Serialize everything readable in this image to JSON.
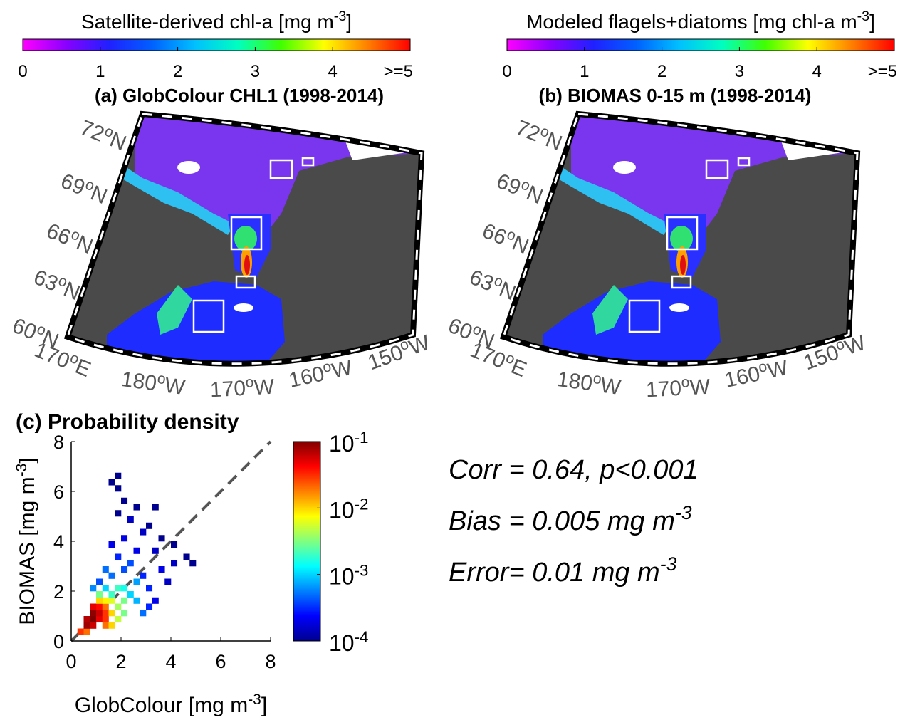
{
  "chart_data": [
    {
      "type": "map",
      "title": "(a) GlobColour CHL1 (1998-2014)",
      "colorbar": {
        "title": "Satellite-derived chl-a [mg m^{-3}]",
        "colors": [
          "#ff00ff",
          "#8a00ff",
          "#2020ff",
          "#0060ff",
          "#00c0ff",
          "#00ffc0",
          "#40ff00",
          "#ffff00",
          "#ff8000",
          "#ff0000"
        ],
        "xlim": [
          0,
          5
        ],
        "xticks": [
          0,
          1,
          2,
          3,
          4,
          {
            "value": 5,
            "label": ">=5"
          }
        ]
      },
      "lat_labels": [
        "72^{o}N",
        "69^{o}N",
        "66^{o}N",
        "63^{o}N",
        "60^{o}N"
      ],
      "lon_labels": [
        "170^{o}E",
        "180^{o}W",
        "170^{o}W",
        "160^{o}W",
        "150^{o}W"
      ]
    },
    {
      "type": "map",
      "title": "(b) BIOMAS 0-15 m (1998-2014)",
      "colorbar": {
        "title": "Modeled flagels+diatoms [mg chl-a m^{-3}]",
        "colors": [
          "#ff00ff",
          "#8a00ff",
          "#2020ff",
          "#0060ff",
          "#00c0ff",
          "#00ffc0",
          "#40ff00",
          "#ffff00",
          "#ff8000",
          "#ff0000"
        ],
        "xlim": [
          0,
          5
        ],
        "xticks": [
          0,
          1,
          2,
          3,
          4,
          {
            "value": 5,
            "label": ">=5"
          }
        ]
      },
      "lat_labels": [
        "72^{o}N",
        "69^{o}N",
        "66^{o}N",
        "63^{o}N",
        "60^{o}N"
      ],
      "lon_labels": [
        "170^{o}E",
        "180^{o}W",
        "170^{o}W",
        "160^{o}W",
        "150^{o}W"
      ]
    },
    {
      "type": "heatmap",
      "title": "(c) Probability density",
      "x_label": "GlobColour [mg m^{-3}]",
      "y_label": "BIOMAS [mg m^{-3}]",
      "xlim": [
        0,
        8
      ],
      "ylim": [
        0,
        8
      ],
      "xticks": [
        0,
        2,
        4,
        6,
        8
      ],
      "yticks": [
        0,
        2,
        4,
        6,
        8
      ],
      "x": [
        0.25,
        0.5,
        0.5,
        0.75,
        0.5,
        0.75,
        0.75,
        1.0,
        1.0,
        1.0,
        0.75,
        1.25,
        1.25,
        1.25,
        1.25,
        1.5,
        1.5,
        1.5,
        1.25,
        1.0,
        1.75,
        1.75,
        2.0,
        2.0,
        1.5,
        1.75,
        2.0,
        2.25,
        2.5,
        2.5,
        1.25,
        1.0,
        1.5,
        2.0,
        2.75,
        3.0,
        3.25,
        3.5,
        3.75,
        4.0,
        4.5,
        4.75,
        2.25,
        2.5,
        1.75,
        1.5,
        2.0,
        2.75,
        3.0,
        2.25,
        1.75,
        2.5,
        3.25,
        2.0,
        1.75,
        1.75,
        1.5,
        3.25,
        3.5,
        4.0,
        1.25,
        0.75,
        2.75,
        3.0,
        1.0
      ],
      "y": [
        0.25,
        0.25,
        0.5,
        0.5,
        0.75,
        0.75,
        1.0,
        0.75,
        1.0,
        1.25,
        1.25,
        0.5,
        0.75,
        1.0,
        1.25,
        0.5,
        1.0,
        1.5,
        1.5,
        1.5,
        0.75,
        1.25,
        1.0,
        1.5,
        1.75,
        2.0,
        2.0,
        1.75,
        1.5,
        2.25,
        2.0,
        1.75,
        2.5,
        2.75,
        2.5,
        2.0,
        1.5,
        2.75,
        2.25,
        3.0,
        3.25,
        3.0,
        3.0,
        3.5,
        3.25,
        3.75,
        4.0,
        4.25,
        4.5,
        4.75,
        5.0,
        5.25,
        5.25,
        5.5,
        6.0,
        6.5,
        6.25,
        3.5,
        4.0,
        3.75,
        2.75,
        2.0,
        1.0,
        1.25,
        2.25
      ],
      "values": [
        0.03,
        0.02,
        0.08,
        0.06,
        0.07,
        0.1,
        0.09,
        0.05,
        0.06,
        0.04,
        0.05,
        0.02,
        0.03,
        0.03,
        0.02,
        0.01,
        0.01,
        0.006,
        0.008,
        0.01,
        0.005,
        0.004,
        0.003,
        0.003,
        0.002,
        0.002,
        0.0015,
        0.001,
        0.0008,
        0.0007,
        0.001,
        0.003,
        0.0005,
        0.0004,
        0.0003,
        0.0003,
        0.0002,
        0.0002,
        0.00015,
        0.00015,
        0.0001,
        0.0001,
        0.0004,
        0.0002,
        0.0003,
        0.0002,
        0.0002,
        0.00015,
        0.0001,
        0.00015,
        0.0001,
        0.0001,
        0.0001,
        0.0001,
        0.0001,
        0.0001,
        0.0001,
        0.00015,
        0.0001,
        0.0001,
        0.0005,
        0.0006,
        0.0005,
        0.0003,
        0.0004
      ],
      "colorbar": {
        "log_scale": true,
        "colors": [
          "#00008f",
          "#0000ff",
          "#0080ff",
          "#00ffff",
          "#80ff80",
          "#ffff00",
          "#ff8000",
          "#ff0000",
          "#800000"
        ],
        "ylim": [
          0.0001,
          0.1
        ],
        "yticks": [
          {
            "value": 0.0001,
            "label": "10^{-4}"
          },
          {
            "value": 0.001,
            "label": "10^{-3}"
          },
          {
            "value": 0.01,
            "label": "10^{-2}"
          },
          {
            "value": 0.1,
            "label": "10^{-1}"
          }
        ]
      }
    }
  ],
  "annotations": [
    "Corr = 0.64, p<0.001",
    "Bias = 0.005 mg m^{-3}",
    "Error= 0.01 mg m^{-3}"
  ]
}
